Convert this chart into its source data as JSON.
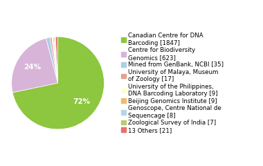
{
  "labels": [
    "Canadian Centre for DNA\nBarcoding [1847]",
    "Centre for Biodiversity\nGenomics [623]",
    "Mined from GenBank, NCBI [35]",
    "University of Malaya, Museum\nof Zoology [17]",
    "University of the Philippines,\nDNA Barcoding Laboratory [9]",
    "Beijing Genomics Institute [9]",
    "Genoscope, Centre National de\nSequencage [8]",
    "Zoological Survey of India [7]",
    "13 Others [21]"
  ],
  "values": [
    1847,
    623,
    35,
    17,
    9,
    9,
    8,
    7,
    21
  ],
  "colors": [
    "#8dc63f",
    "#d8b4d8",
    "#aecde8",
    "#e8a090",
    "#ffffcc",
    "#f4b96e",
    "#b8d4e8",
    "#b8cc6e",
    "#e87070"
  ],
  "autopct_threshold": 3.0,
  "text_color": "white",
  "pct_fontsize": 7.5,
  "legend_font_size": 6.2,
  "background_color": "#ffffff"
}
